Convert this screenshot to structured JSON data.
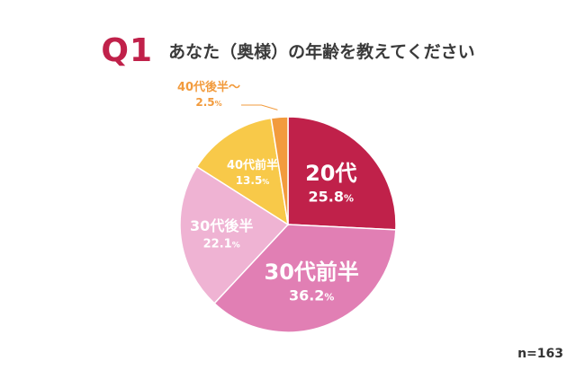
{
  "header": {
    "q_label": "Q1",
    "title": "あなた（奥様）の年齢を教えてください"
  },
  "sample_size": "n=163",
  "chart_data": {
    "type": "pie",
    "title": "あなた（奥様）の年齢を教えてください",
    "start_angle_deg": 0,
    "direction": "clockwise",
    "slices": [
      {
        "label": "20代",
        "value": 25.8,
        "value_label": "25.8",
        "unit": "%",
        "color": "#c0214a",
        "text_color": "#ffffff",
        "label_size": "large"
      },
      {
        "label": "30代前半",
        "value": 36.2,
        "value_label": "36.2",
        "unit": "%",
        "color": "#e17fb4",
        "text_color": "#ffffff",
        "label_size": "large"
      },
      {
        "label": "30代後半",
        "value": 22.1,
        "value_label": "22.1",
        "unit": "%",
        "color": "#efb3d3",
        "text_color": "#ffffff",
        "label_size": "medium"
      },
      {
        "label": "40代前半",
        "value": 13.5,
        "value_label": "13.5",
        "unit": "%",
        "color": "#f8c949",
        "text_color": "#ffffff",
        "label_size": "small"
      },
      {
        "label": "40代後半～",
        "value": 2.5,
        "value_label": "2.5",
        "unit": "%",
        "color": "#f29b3d",
        "text_color": "#f29b3d",
        "label_size": "small",
        "label_outside": true
      }
    ]
  }
}
